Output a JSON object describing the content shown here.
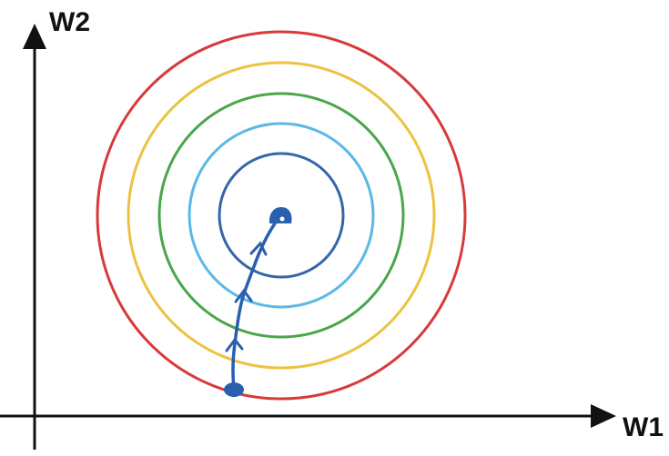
{
  "axes": {
    "x_label": "W1",
    "y_label": "W2"
  },
  "contours": [
    {
      "level": 1,
      "color": "#3566a8"
    },
    {
      "level": 2,
      "color": "#5bb8e8"
    },
    {
      "level": 3,
      "color": "#4aa64a"
    },
    {
      "level": 4,
      "color": "#ebc341"
    },
    {
      "level": 5,
      "color": "#d83a3a"
    }
  ],
  "path": {
    "color": "#2a5fae",
    "start": "outer-contour",
    "end": "minimum"
  }
}
